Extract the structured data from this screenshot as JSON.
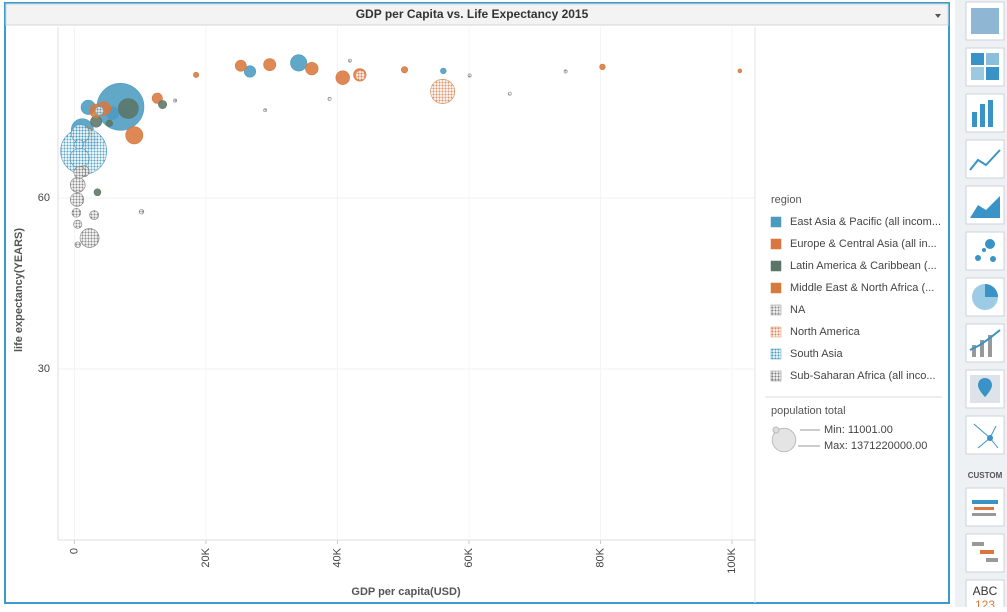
{
  "chart_data": {
    "type": "scatter",
    "title": "GDP per Capita vs. Life Expectancy 2015",
    "x_label": "GDP per capita(USD)",
    "y_label": "life expectancy(YEARS)",
    "xlim": [
      -2500,
      103500
    ],
    "ylim": [
      0,
      90
    ],
    "xticks": [
      0,
      {
        "value": 20000,
        "label": "20K"
      },
      {
        "value": 40000,
        "label": "40K"
      },
      {
        "value": 60000,
        "label": "60K"
      },
      {
        "value": 80000,
        "label": "80K"
      },
      {
        "value": 100000,
        "label": "100K"
      }
    ],
    "yticks": [
      30,
      60
    ],
    "grid": true,
    "legend_title": "region",
    "legend_position": "right",
    "size_legend": {
      "title": "population total",
      "min": 11001,
      "max": 1371220000,
      "min_label": "Min: 11001.00",
      "max_label": "Max: 1371220000.00"
    },
    "series": [
      {
        "name": "East Asia & Pacific (all incom...",
        "color": "#4b9bc0",
        "pattern": "solid",
        "x": [
          7000,
          1200,
          34100,
          26700,
          56100,
          2100,
          2400,
          5800,
          7600
        ],
        "values": [
          76.0,
          72.0,
          83.7,
          82.2,
          82.3,
          75.9,
          69.8,
          74.9,
          74.9
        ],
        "sizes": [
          1371220000,
          255000000,
          127000000,
          50600000,
          5500000,
          91700000,
          101000000,
          68000000,
          30000000
        ]
      },
      {
        "name": "Europe & Central Asia (all in...",
        "color": "#d9773f",
        "pattern": "solid",
        "x": [
          9100,
          40800,
          43400,
          36100,
          29700,
          25300,
          50200,
          4500,
          12600,
          80300,
          101200
        ],
        "values": [
          71.0,
          81.1,
          81.6,
          82.7,
          83.4,
          83.2,
          82.5,
          75.7,
          77.5,
          83.0,
          82.3
        ],
        "sizes": [
          144000000,
          81700000,
          65100000,
          66600000,
          60700000,
          46400000,
          8300000,
          78700000,
          38000000,
          5200000,
          570000
        ]
      },
      {
        "name": "Latin America & Caribbean (...",
        "color": "#5b7566",
        "pattern": "solid",
        "x": [
          8200,
          13400,
          3300,
          5300,
          3500
        ],
        "values": [
          75.7,
          76.4,
          73.4,
          73.1,
          61.0
        ],
        "sizes": [
          205000000,
          20000000,
          48000000,
          10000000,
          10700000
        ]
      },
      {
        "name": "Middle East & North Africa (...",
        "color": "#d67a3e",
        "pattern": "solid",
        "x": [
          3300,
          1800,
          18500
        ],
        "values": [
          75.3,
          71.2,
          81.6
        ],
        "sizes": [
          79000000,
          93000000,
          4000000
        ]
      },
      {
        "name": "NA",
        "color": "#8a8a8a",
        "pattern": "dots",
        "x": [
          41900,
          29000,
          66200,
          74700,
          38800,
          15300,
          60100
        ],
        "values": [
          84.1,
          75.4,
          78.3,
          82.2,
          77.4,
          77.1,
          81.5
        ],
        "sizes": [
          37000,
          11001,
          20000,
          30000,
          55000,
          100000,
          60000
        ]
      },
      {
        "name": "North America",
        "color": "#d98a5a",
        "pattern": "dots",
        "x": [
          56000,
          43500
        ],
        "values": [
          78.7,
          81.5
        ],
        "sizes": [
          321000000,
          35800000
        ]
      },
      {
        "name": "South Asia",
        "color": "#4b9bc0",
        "pattern": "dots",
        "x": [
          1400,
          900,
          800,
          3800,
          700
        ],
        "values": [
          68.2,
          71.3,
          67.0,
          75.3,
          69.4
        ],
        "sizes": [
          1311000000,
          161000000,
          189000000,
          21000000,
          28600000
        ]
      },
      {
        "name": "Sub-Saharan Africa (all inco...",
        "color": "#7d7d7d",
        "pattern": "dots",
        "x": [
          2300,
          500,
          400,
          1400,
          800,
          300,
          500,
          3000,
          10200,
          500
        ],
        "values": [
          53.0,
          62.3,
          59.7,
          64.7,
          64.5,
          57.4,
          51.8,
          57.0,
          57.6,
          55.4
        ],
        "sizes": [
          182000000,
          99000000,
          77000000,
          46000000,
          53000000,
          24000000,
          4900000,
          25000000,
          2000000,
          20000000
        ]
      }
    ]
  },
  "toolbar": {
    "section_label": "CUSTOM",
    "text_icon": "ABC",
    "number_icon": "123"
  }
}
